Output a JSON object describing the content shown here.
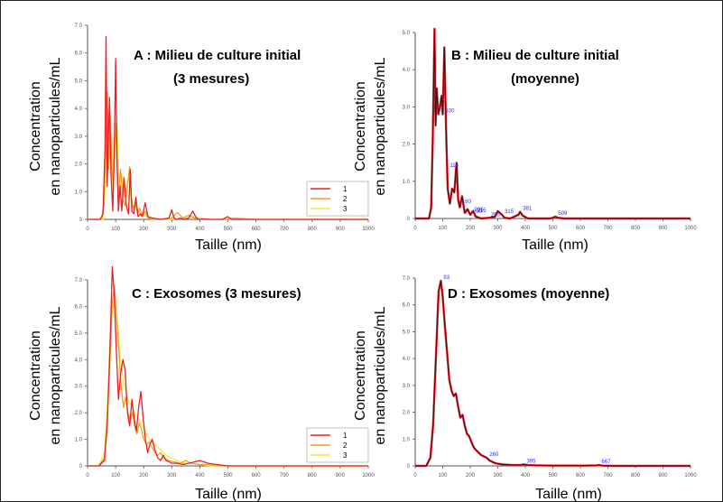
{
  "chart_data": [
    {
      "type": "line",
      "title": "A : Milieu de culture initial",
      "subtitle": "(3 mesures)",
      "ylabel": "Concentration",
      "ylabel2": "en nanoparticules/mL",
      "xlabel": "Taille (nm)",
      "xlim": [
        0,
        1000
      ],
      "ylim": [
        0,
        7.0
      ],
      "xticks": [
        "0",
        "100",
        "200",
        "300",
        "400",
        "500",
        "600",
        "700",
        "800",
        "900",
        "1000"
      ],
      "yticks": [
        "0",
        "1.0",
        "2.0",
        "3.0",
        "4.0",
        "5.0",
        "6.0",
        "7.0"
      ],
      "legend": {
        "position": "bottom-right",
        "entries": [
          "1",
          "2",
          "3"
        ]
      },
      "series": [
        {
          "name": "1",
          "color": "#e8202a",
          "x": [
            0,
            45,
            55,
            62,
            66,
            70,
            74,
            78,
            84,
            90,
            96,
            100,
            105,
            110,
            116,
            122,
            130,
            138,
            146,
            152,
            158,
            165,
            172,
            180,
            188,
            195,
            205,
            215,
            230,
            260,
            290,
            300,
            308,
            318,
            330,
            345,
            360,
            375,
            385,
            395,
            410,
            440,
            480,
            500,
            505,
            515,
            540,
            600,
            700,
            800,
            900,
            1000
          ],
          "y": [
            0,
            0,
            0.2,
            2.5,
            6.6,
            1.2,
            2.8,
            4.4,
            1.5,
            0.3,
            3.0,
            5.8,
            2.0,
            0.3,
            1.2,
            0.3,
            1.5,
            0.5,
            0.2,
            1.8,
            0.3,
            0.2,
            0.8,
            0.1,
            0.2,
            0.1,
            0.6,
            0.1,
            0.05,
            0,
            0.05,
            0.35,
            0.05,
            0,
            0.05,
            0,
            0.05,
            0.3,
            0.1,
            0,
            0.02,
            0,
            0,
            0.1,
            0.05,
            0,
            0,
            0,
            0,
            0,
            0,
            0
          ]
        },
        {
          "name": "2",
          "color": "#f0a020",
          "x": [
            0,
            50,
            58,
            65,
            70,
            75,
            80,
            86,
            92,
            98,
            104,
            110,
            118,
            126,
            134,
            142,
            150,
            156,
            162,
            170,
            178,
            186,
            195,
            205,
            215,
            230,
            260,
            300,
            320,
            340,
            360,
            380,
            400,
            440,
            500,
            520,
            600,
            700,
            800,
            900,
            1000
          ],
          "y": [
            0,
            0,
            0.5,
            2.8,
            4.6,
            1.8,
            3.8,
            2.0,
            1.0,
            3.5,
            2.5,
            0.8,
            1.8,
            0.7,
            0.5,
            1.2,
            1.9,
            0.8,
            0.4,
            0.6,
            0.2,
            0.4,
            0.1,
            0.3,
            0.05,
            0,
            0,
            0.05,
            0.25,
            0.05,
            0.15,
            0.05,
            0,
            0,
            0,
            0.05,
            0,
            0,
            0,
            0,
            0
          ]
        },
        {
          "name": "3",
          "color": "#f3ec3a",
          "x": [
            0,
            55,
            62,
            68,
            74,
            80,
            86,
            92,
            98,
            104,
            110,
            116,
            124,
            132,
            140,
            148,
            156,
            164,
            172,
            180,
            190,
            200,
            210,
            220,
            240,
            280,
            320,
            360,
            380,
            400,
            440,
            500,
            600,
            700,
            800,
            900,
            1000
          ],
          "y": [
            0,
            0,
            1.0,
            2.4,
            3.3,
            2.2,
            3.0,
            1.6,
            2.6,
            3.6,
            2.0,
            1.0,
            1.6,
            0.8,
            1.2,
            1.5,
            0.6,
            0.4,
            0.5,
            0.3,
            0.2,
            0.3,
            0.1,
            0.05,
            0,
            0,
            0.02,
            0.05,
            0.1,
            0.02,
            0,
            0,
            0,
            0,
            0,
            0,
            0
          ]
        }
      ]
    },
    {
      "type": "line",
      "title": "B : Milieu de culture initial",
      "subtitle": "(moyenne)",
      "ylabel": "Concentration",
      "ylabel2": "en nanoparticules/mL",
      "xlabel": "Taille (nm)",
      "xlim": [
        0,
        1000
      ],
      "ylim": [
        0,
        5.0
      ],
      "xticks": [
        "0",
        "100",
        "200",
        "300",
        "400",
        "500",
        "600",
        "700",
        "800",
        "900",
        "1000"
      ],
      "yticks": [
        "0",
        "1.0",
        "2.0",
        "3.0",
        "4.0",
        "5.0"
      ],
      "series": [
        {
          "name": "",
          "color": "#e8202a",
          "x": [
            0,
            50,
            58,
            64,
            70,
            74,
            78,
            84,
            90,
            96,
            100,
            106,
            112,
            118,
            126,
            134,
            142,
            150,
            156,
            162,
            170,
            180,
            190,
            200,
            210,
            220,
            240,
            270,
            290,
            300,
            308,
            315,
            325,
            345,
            360,
            375,
            381,
            390,
            410,
            450,
            490,
            500,
            509,
            518,
            540,
            600,
            700,
            800,
            900,
            1000
          ],
          "y": [
            0,
            0,
            0.3,
            2.2,
            5.1,
            2.5,
            3.5,
            2.8,
            3.0,
            3.3,
            2.8,
            4.6,
            2.4,
            0.8,
            0.4,
            0.8,
            0.7,
            1.5,
            0.5,
            0.3,
            0.6,
            0.15,
            0.25,
            0.1,
            0.2,
            0.05,
            0,
            0.02,
            0.05,
            0.2,
            0.15,
            0.1,
            0.02,
            0,
            0.05,
            0.1,
            0.18,
            0.08,
            0,
            0,
            0,
            0.02,
            0.05,
            0.02,
            0,
            0,
            0,
            0,
            0,
            0
          ]
        }
      ],
      "annotations": [
        "116",
        "100",
        "160",
        "215",
        "315",
        "381",
        "509",
        "265",
        "205",
        "200"
      ]
    },
    {
      "type": "line",
      "title": "C : Exosomes (3 mesures)",
      "ylabel": "Concentration",
      "ylabel2": "en nanoparticules/mL",
      "xlabel": "Taille (nm)",
      "xlim": [
        0,
        1000
      ],
      "ylim": [
        0,
        7.0
      ],
      "xticks": [
        "0",
        "100",
        "200",
        "300",
        "400",
        "500",
        "600",
        "700",
        "800",
        "900",
        "1000"
      ],
      "yticks": [
        "0",
        "1.0",
        "2.0",
        "3.0",
        "4.0",
        "5.0",
        "6.0",
        "7.0"
      ],
      "legend": {
        "position": "bottom-right",
        "entries": [
          "1",
          "2",
          "3"
        ]
      },
      "series": [
        {
          "name": "1",
          "color": "#e8202a",
          "x": [
            0,
            40,
            60,
            70,
            80,
            88,
            95,
            102,
            110,
            118,
            126,
            134,
            142,
            150,
            158,
            166,
            174,
            182,
            190,
            198,
            206,
            214,
            222,
            230,
            240,
            250,
            260,
            270,
            280,
            300,
            320,
            340,
            360,
            380,
            400,
            430,
            460,
            500,
            600,
            700,
            800,
            900,
            1000
          ],
          "y": [
            0,
            0,
            0.2,
            1.5,
            4.5,
            7.5,
            6.5,
            4.5,
            2.5,
            3.5,
            4.0,
            3.6,
            2.0,
            1.5,
            2.5,
            1.8,
            1.3,
            2.2,
            2.8,
            1.8,
            1.0,
            0.5,
            0.8,
            1.0,
            0.6,
            0.3,
            0.2,
            0.4,
            0.2,
            0.1,
            0.1,
            0.05,
            0.1,
            0.15,
            0.2,
            0.1,
            0.05,
            0,
            0,
            0,
            0,
            0,
            0
          ]
        },
        {
          "name": "2",
          "color": "#f0a020",
          "x": [
            0,
            40,
            60,
            70,
            80,
            88,
            96,
            104,
            112,
            120,
            128,
            136,
            144,
            152,
            160,
            168,
            176,
            184,
            192,
            200,
            210,
            220,
            230,
            240,
            250,
            260,
            270,
            290,
            310,
            330,
            350,
            370,
            400,
            430,
            460,
            500,
            600,
            700,
            800,
            900,
            1000
          ],
          "y": [
            0,
            0,
            0.3,
            1.8,
            4.0,
            6.2,
            6.8,
            5.5,
            4.2,
            3.0,
            2.2,
            2.6,
            2.0,
            1.7,
            2.0,
            1.5,
            1.2,
            1.6,
            1.4,
            1.0,
            0.8,
            0.9,
            0.7,
            0.5,
            0.4,
            0.5,
            0.3,
            0.2,
            0.15,
            0.1,
            0.2,
            0.1,
            0.05,
            0.05,
            0,
            0,
            0,
            0,
            0,
            0,
            0
          ]
        },
        {
          "name": "3",
          "color": "#f3ec3a",
          "x": [
            0,
            40,
            60,
            70,
            80,
            90,
            100,
            108,
            116,
            124,
            132,
            140,
            148,
            156,
            164,
            172,
            180,
            190,
            200,
            210,
            220,
            230,
            240,
            250,
            260,
            270,
            280,
            300,
            320,
            340,
            370,
            400,
            440,
            500,
            600,
            700,
            800,
            900,
            1000
          ],
          "y": [
            0,
            0,
            0.5,
            2.2,
            4.8,
            6.0,
            6.1,
            5.2,
            4.2,
            3.4,
            3.0,
            2.6,
            2.4,
            2.3,
            2.1,
            1.9,
            1.8,
            1.6,
            1.4,
            1.2,
            1.0,
            0.9,
            0.8,
            0.7,
            0.6,
            0.5,
            0.4,
            0.3,
            0.2,
            0.1,
            0.1,
            0.05,
            0,
            0,
            0,
            0,
            0,
            0,
            0
          ]
        }
      ]
    },
    {
      "type": "line",
      "title": "D : Exosomes (moyenne)",
      "ylabel": "Concentration",
      "ylabel2": "en nanoparticules/mL",
      "xlabel": "Taille (nm)",
      "xlim": [
        0,
        1000
      ],
      "ylim": [
        0,
        7.0
      ],
      "xticks": [
        "0",
        "100",
        "200",
        "300",
        "400",
        "500",
        "600",
        "700",
        "800",
        "900",
        "1000"
      ],
      "yticks": [
        "0",
        "1.0",
        "2.0",
        "3.0",
        "4.0",
        "5.0",
        "6.0",
        "7.0"
      ],
      "series": [
        {
          "name": "",
          "color": "#e8202a",
          "x": [
            0,
            40,
            55,
            65,
            75,
            85,
            93,
            100,
            108,
            116,
            124,
            132,
            140,
            148,
            156,
            164,
            172,
            180,
            188,
            196,
            204,
            212,
            220,
            230,
            240,
            250,
            260,
            270,
            280,
            290,
            300,
            320,
            340,
            360,
            380,
            395,
            410,
            440,
            500,
            560,
            620,
            660,
            667,
            680,
            720,
            800,
            900,
            1000
          ],
          "y": [
            0,
            0,
            0.3,
            1.5,
            4.0,
            6.5,
            6.9,
            6.3,
            5.2,
            4.2,
            3.2,
            2.8,
            2.6,
            2.7,
            2.2,
            1.8,
            1.9,
            1.5,
            1.2,
            1.1,
            0.9,
            0.7,
            0.6,
            0.5,
            0.4,
            0.35,
            0.3,
            0.2,
            0.15,
            0.1,
            0.08,
            0.05,
            0.04,
            0.03,
            0.03,
            0.05,
            0.03,
            0.02,
            0.01,
            0.01,
            0.01,
            0.02,
            0.03,
            0.01,
            0,
            0,
            0,
            0
          ]
        }
      ],
      "annotations": [
        "93",
        "260",
        "395",
        "667"
      ]
    }
  ]
}
